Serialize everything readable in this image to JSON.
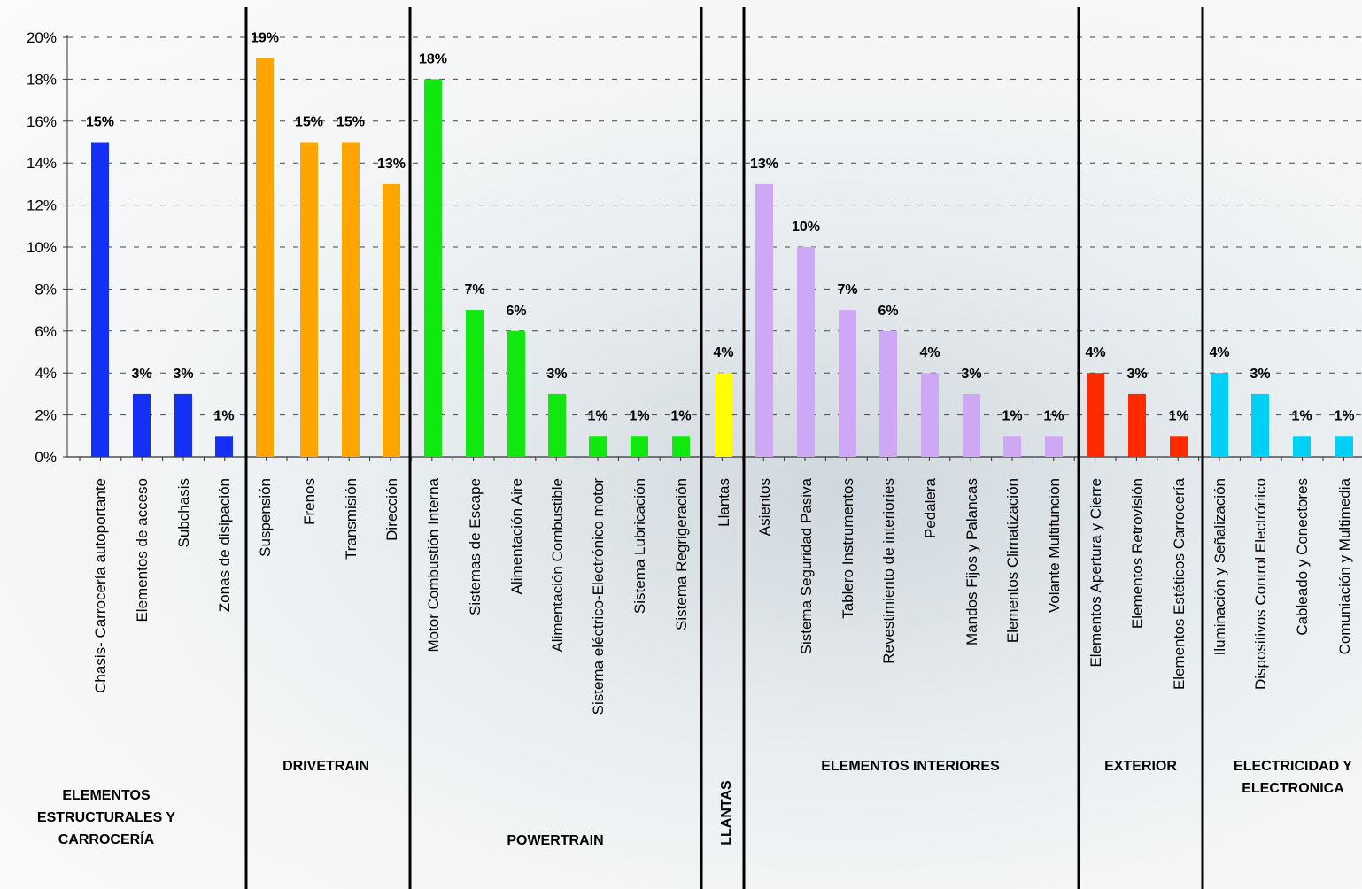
{
  "chart_data": {
    "type": "bar",
    "ylim": [
      0,
      20
    ],
    "y_ticks": [
      "0%",
      "2%",
      "4%",
      "6%",
      "8%",
      "10%",
      "12%",
      "14%",
      "16%",
      "18%",
      "20%"
    ],
    "grid": "dashed horizontal",
    "groups": [
      {
        "label_lines": [
          "ELEMENTOS",
          "ESTRUCTURALES Y",
          "CARROCERÍA"
        ],
        "color": "#1430f5",
        "categories": [
          "Chasis- Carrocería autoportante",
          "Elementos de acceso",
          "Subchasis",
          "Zonas de disipación"
        ],
        "values": [
          15,
          3,
          3,
          1
        ],
        "labels": [
          "15%",
          "3%",
          "3%",
          "1%"
        ]
      },
      {
        "label_lines": [
          "DRIVETRAIN"
        ],
        "color": "#ffa500",
        "categories": [
          "Suspensión",
          "Frenos",
          "Transmisión",
          "Dirección"
        ],
        "values": [
          19,
          15,
          15,
          13
        ],
        "labels": [
          "19%",
          "15%",
          "15%",
          "13%"
        ]
      },
      {
        "label_lines": [
          "POWERTRAIN"
        ],
        "color": "#10e810",
        "categories": [
          "Motor Combustión Interna",
          "Sistemas de Escape",
          "Alimentación Aire",
          "Alimentación Combustible",
          "Sistema eléctrico-Electrónico motor",
          "Sistema Lubricación",
          "Sistema Regrigeración"
        ],
        "values": [
          18,
          7,
          6,
          3,
          1,
          1,
          1
        ],
        "labels": [
          "18%",
          "7%",
          "6%",
          "3%",
          "1%",
          "1%",
          "1%"
        ]
      },
      {
        "label_lines": [
          "LLANTAS"
        ],
        "color": "#ffff00",
        "categories": [
          "Llantas"
        ],
        "values": [
          4
        ],
        "labels": [
          "4%"
        ]
      },
      {
        "label_lines": [
          "ELEMENTOS INTERIORES"
        ],
        "color": "#cfa8f5",
        "categories": [
          "Asientos",
          "Sistema Seguridad Pasiva",
          "Tablero Instrumentos",
          "Revestimiento de interiories",
          "Pedalera",
          "Mandos Fijos y Palancas",
          "Elementos Climatización",
          "Volante Multifunción"
        ],
        "values": [
          13,
          10,
          7,
          6,
          4,
          3,
          1,
          1
        ],
        "labels": [
          "13%",
          "10%",
          "7%",
          "6%",
          "4%",
          "3%",
          "1%",
          "1%"
        ]
      },
      {
        "label_lines": [
          "EXTERIOR"
        ],
        "color": "#ff2a00",
        "categories": [
          "Elementos Apertura y Cierre",
          "Elementos Retrovisión",
          "Elementos Estéticos Carrocería"
        ],
        "values": [
          4,
          3,
          1
        ],
        "labels": [
          "4%",
          "3%",
          "1%"
        ]
      },
      {
        "label_lines": [
          "ELECTRICIDAD Y",
          "ELECTRONICA"
        ],
        "color": "#00d0f5",
        "categories": [
          "Iluminación y Señalización",
          "Dispositivos Control Electrónico",
          "Cableado y Conectores",
          "Comuniación y Multimedia"
        ],
        "values": [
          4,
          3,
          1,
          1
        ],
        "labels": [
          "4%",
          "3%",
          "1%",
          "1%"
        ]
      }
    ]
  }
}
